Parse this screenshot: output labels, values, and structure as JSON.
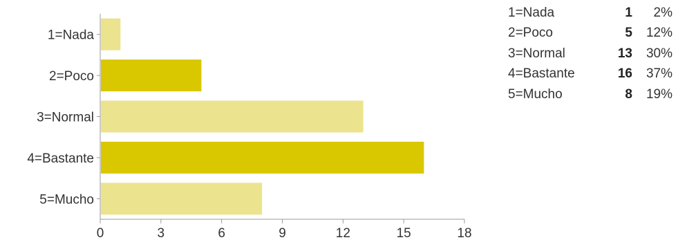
{
  "chart_data": {
    "type": "bar",
    "orientation": "horizontal",
    "title": "",
    "xlabel": "",
    "ylabel": "",
    "categories": [
      "1=Nada",
      "2=Poco",
      "3=Normal",
      "4=Bastante",
      "5=Mucho"
    ],
    "values": [
      1,
      5,
      13,
      16,
      8
    ],
    "percentages": [
      "2%",
      "12%",
      "30%",
      "37%",
      "19%"
    ],
    "xlim": [
      0,
      18
    ],
    "xticks": [
      "0",
      "3",
      "6",
      "9",
      "12",
      "15",
      "18"
    ],
    "grid": false,
    "legend": "none",
    "colors": {
      "bar_light": "#ebe38e",
      "bar_dark": "#d9c700",
      "axis": "#999999"
    }
  },
  "summary": {
    "rows": [
      {
        "label": "1=Nada",
        "count": "1",
        "pct": "2%"
      },
      {
        "label": "2=Poco",
        "count": "5",
        "pct": "12%"
      },
      {
        "label": "3=Normal",
        "count": "13",
        "pct": "30%"
      },
      {
        "label": "4=Bastante",
        "count": "16",
        "pct": "37%"
      },
      {
        "label": "5=Mucho",
        "count": "8",
        "pct": "19%"
      }
    ]
  }
}
